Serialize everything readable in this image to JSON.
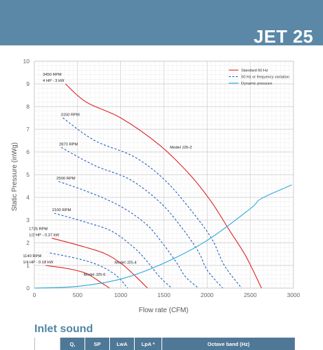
{
  "header": {
    "title": "JET 25"
  },
  "colors": {
    "header_bg": "#5b88a6",
    "standard": "#e02020",
    "vfd": "#1f5fbf",
    "dynamic": "#2aa8dc",
    "table_header": "#4f7896",
    "accent_text": "#4f86a5"
  },
  "chart_data": {
    "type": "line",
    "xlabel": "Flow rate (CFM)",
    "ylabel": "Static Pressure (inWg)",
    "xlim": [
      0,
      3000
    ],
    "ylim": [
      0,
      10
    ],
    "x_ticks": [
      "0",
      "500",
      "1000",
      "1500",
      "2000",
      "2500",
      "3000"
    ],
    "y_ticks": [
      "0",
      "1",
      "2",
      "3",
      "4",
      "5",
      "6",
      "7",
      "8",
      "9",
      "10"
    ],
    "grid": true,
    "legend": {
      "placement": "top-right",
      "entries": [
        {
          "label": "Standard 60 Hz",
          "style": "solid",
          "color": "#e02020"
        },
        {
          "label": "50 Hz or frequency variation",
          "style": "dashed",
          "color": "#1f5fbf"
        },
        {
          "label": "Dynamic pressure",
          "style": "solid",
          "color": "#2aa8dc"
        }
      ]
    },
    "series": [
      {
        "label_lines": [
          "3450 RPM",
          "4 HP - 3 kW"
        ],
        "style": "solid",
        "model": "Model J25-2",
        "points": [
          [
            360,
            9.0
          ],
          [
            600,
            8.2
          ],
          [
            1000,
            7.5
          ],
          [
            1450,
            6.3
          ],
          [
            1800,
            5.0
          ],
          [
            2050,
            3.8
          ],
          [
            2250,
            2.6
          ],
          [
            2450,
            1.4
          ],
          [
            2630,
            0
          ]
        ]
      },
      {
        "label_lines": [
          "3150 RPM"
        ],
        "style": "dashed",
        "points": [
          [
            330,
            7.5
          ],
          [
            700,
            6.5
          ],
          [
            1150,
            5.8
          ],
          [
            1500,
            4.8
          ],
          [
            1800,
            3.5
          ],
          [
            2050,
            2.2
          ],
          [
            2200,
            1.0
          ],
          [
            2400,
            0
          ]
        ]
      },
      {
        "label_lines": [
          "2870 RPM"
        ],
        "style": "dashed",
        "points": [
          [
            310,
            6.2
          ],
          [
            700,
            5.4
          ],
          [
            1100,
            4.8
          ],
          [
            1450,
            3.8
          ],
          [
            1700,
            2.7
          ],
          [
            1900,
            1.6
          ],
          [
            2000,
            0.8
          ],
          [
            2180,
            0
          ]
        ]
      },
      {
        "label_lines": [
          "2500 RPM"
        ],
        "style": "dashed",
        "points": [
          [
            280,
            4.7
          ],
          [
            650,
            4.2
          ],
          [
            1000,
            3.6
          ],
          [
            1300,
            2.8
          ],
          [
            1500,
            1.9
          ],
          [
            1650,
            1.1
          ],
          [
            1750,
            0.5
          ],
          [
            1900,
            0
          ]
        ]
      },
      {
        "label_lines": [
          "2100 RPM"
        ],
        "style": "dashed",
        "points": [
          [
            230,
            3.3
          ],
          [
            600,
            2.9
          ],
          [
            900,
            2.5
          ],
          [
            1150,
            1.8
          ],
          [
            1300,
            1.2
          ],
          [
            1450,
            0.5
          ],
          [
            1590,
            0
          ]
        ]
      },
      {
        "label_lines": [
          "1725 RPM",
          "1/2 HP - 0.37 kW"
        ],
        "style": "solid",
        "model": "Model J25-4",
        "points": [
          [
            200,
            2.2
          ],
          [
            500,
            1.9
          ],
          [
            800,
            1.55
          ],
          [
            1000,
            1.1
          ],
          [
            1150,
            0.6
          ],
          [
            1310,
            0
          ]
        ]
      },
      {
        "label_lines": [],
        "style": "dashed",
        "points": [
          [
            180,
            1.55
          ],
          [
            500,
            1.3
          ],
          [
            750,
            1.0
          ],
          [
            950,
            0.55
          ],
          [
            1080,
            0
          ]
        ]
      },
      {
        "label_lines": [
          "1140 RPM",
          "1/4 HP - 0.18 kW"
        ],
        "style": "solid",
        "model": "Model J25-6",
        "points": [
          [
            130,
            1.0
          ],
          [
            400,
            0.85
          ],
          [
            600,
            0.65
          ],
          [
            750,
            0.3
          ],
          [
            870,
            0
          ]
        ]
      },
      {
        "label_lines": [],
        "style": "dynamic",
        "points": [
          [
            0,
            0
          ],
          [
            500,
            0.08
          ],
          [
            1000,
            0.4
          ],
          [
            1500,
            1.1
          ],
          [
            2000,
            2.1
          ],
          [
            2500,
            3.5
          ],
          [
            2630,
            3.95
          ],
          [
            2980,
            4.55
          ]
        ]
      }
    ]
  },
  "inlet_sound": {
    "title": "Inlet sound",
    "columns": [
      "",
      "Q,",
      "SP",
      "LwA",
      "LpA *",
      "Octave band (Hz)"
    ]
  }
}
